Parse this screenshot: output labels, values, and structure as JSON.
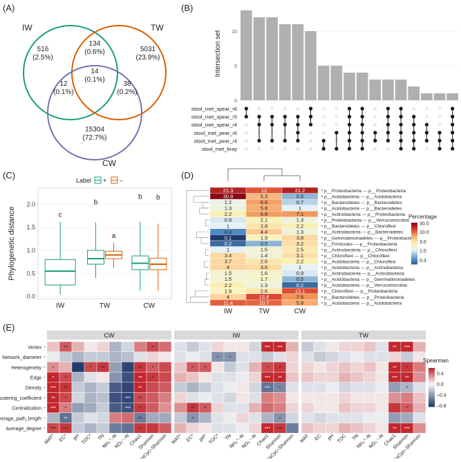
{
  "panels": {
    "A": "(A)",
    "B": "(B)",
    "C": "(C)",
    "D": "(D)",
    "E": "(E)"
  },
  "chart_data": [
    {
      "type": "venn",
      "panel": "A",
      "sets": [
        {
          "name": "IW",
          "color": "#1a9e77"
        },
        {
          "name": "TW",
          "color": "#d95f02"
        },
        {
          "name": "CW",
          "color": "#7570b3"
        }
      ],
      "regions": [
        {
          "id": "iw_only",
          "count": "516",
          "pct": "(2.5%)"
        },
        {
          "id": "iw_tw",
          "count": "134",
          "pct": "(0.6%)"
        },
        {
          "id": "tw_only",
          "count": "5031",
          "pct": "(23.9%)"
        },
        {
          "id": "iw_cw",
          "count": "12",
          "pct": "(0.1%)"
        },
        {
          "id": "all",
          "count": "14",
          "pct": "(0.1%)"
        },
        {
          "id": "tw_cw",
          "count": "38",
          "pct": "(0.2%)"
        },
        {
          "id": "cw_only",
          "count": "15304",
          "pct": "(72.7%)"
        }
      ]
    },
    {
      "type": "upset",
      "panel": "B",
      "ylabel": "Intersection set",
      "yticks": [
        0,
        5,
        10
      ],
      "ylim": [
        0,
        13.5
      ],
      "bar_values": [
        13,
        12,
        12,
        11,
        11,
        10,
        5,
        5,
        4,
        4,
        3,
        3,
        3,
        2,
        1,
        1,
        1
      ],
      "sets": [
        "stool_met_spear_r6",
        "stool_met_spear_r5",
        "stool_met_spear_r4",
        "stool_met_pear_r6",
        "stool_met_pear_r4",
        "stool_met_bray"
      ],
      "membership": [
        [
          0,
          1,
          1,
          1
        ],
        [
          1,
          2,
          2,
          4
        ],
        [
          1,
          2,
          2,
          4
        ],
        [
          1,
          2,
          4
        ],
        [
          1,
          2,
          3,
          4
        ],
        [
          0,
          1,
          2
        ],
        [
          4,
          5
        ],
        [
          3,
          5
        ],
        [
          0,
          1,
          2,
          3,
          4,
          5
        ],
        [
          0,
          1,
          2,
          3,
          4,
          5
        ],
        [
          3,
          4
        ],
        [
          0,
          1,
          2,
          3,
          4
        ],
        [
          0,
          1,
          2,
          3,
          4,
          5
        ],
        [
          1,
          2,
          3,
          4,
          5
        ],
        [
          2,
          3,
          4
        ],
        [
          3,
          4,
          5
        ],
        [
          0,
          1,
          2,
          3,
          4,
          5
        ]
      ]
    },
    {
      "type": "boxplot",
      "panel": "C",
      "ylabel": "Phylogenetic distance",
      "legend_title": "Label",
      "legend_items": [
        "+",
        "–"
      ],
      "categories": [
        "IW",
        "TW",
        "CW"
      ],
      "yticks": [
        0.0,
        0.5,
        1.0,
        1.5,
        2.0
      ],
      "ylim": [
        -0.05,
        2.35
      ],
      "series": [
        {
          "name": "+",
          "color": "#1a9e77",
          "boxes": [
            {
              "min": 0.05,
              "q1": 0.25,
              "median": 0.55,
              "q3": 0.8,
              "max": 1.62
            },
            {
              "min": 0.4,
              "q1": 0.7,
              "median": 0.82,
              "q3": 1.0,
              "max": 1.6
            },
            {
              "min": 0.12,
              "q1": 0.58,
              "median": 0.72,
              "q3": 0.88,
              "max": 1.62
            }
          ]
        },
        {
          "name": "–",
          "color": "#d95f02",
          "boxes": [
            null,
            {
              "min": 0.62,
              "q1": 0.82,
              "median": 0.9,
              "q3": 0.98,
              "max": 1.17
            },
            {
              "min": 0.12,
              "q1": 0.58,
              "median": 0.7,
              "q3": 0.83,
              "max": 1.58
            }
          ]
        }
      ],
      "letters": [
        {
          "cat": 0,
          "series": 0,
          "text": "c",
          "value": 1.73
        },
        {
          "cat": 1,
          "series": 0,
          "text": "b",
          "value": 2.0
        },
        {
          "cat": 1,
          "series": 1,
          "text": "a",
          "value": 1.27
        },
        {
          "cat": 2,
          "series": 0,
          "text": "b",
          "value": 2.12
        },
        {
          "cat": 2,
          "series": 1,
          "text": "b",
          "value": 2.1
        }
      ]
    },
    {
      "type": "heatmap",
      "panel": "D",
      "columns": [
        "IW",
        "TW",
        "CW"
      ],
      "rows": [
        {
          "label": "p__Proteobacteria --- p__Proteobacteria",
          "values": [
            "21.3",
            "12",
            "21.2"
          ]
        },
        {
          "label": "p__Acidobacteria --- p__Acidobacteria",
          "values": [
            "30.8",
            "5.3",
            "0.5"
          ]
        },
        {
          "label": "p__Bacteroidetes --- p__Bacteroidetes",
          "values": [
            "1.2",
            "6.6",
            "0.7"
          ]
        },
        {
          "label": "p__Acidobacteria --- p__Bacteroidetes",
          "values": [
            "1.3",
            "5.8",
            "1"
          ]
        },
        {
          "label": "p__Actinobacteria --- p__Proteobacteria",
          "values": [
            "2.2",
            "6.8",
            "7.1"
          ]
        },
        {
          "label": "p__Proteobacteria --- p__Verrucomicrobia",
          "values": [
            "0.9",
            "2.1",
            "1.3"
          ]
        },
        {
          "label": "p__Bacteroidetes --- p__Chloroflexi",
          "values": [
            "1",
            "2.8",
            "2.2"
          ]
        },
        {
          "label": "p__Actinobacteria --- p__Bacteroidetes",
          "values": [
            "0.3",
            "4.4",
            "1.3"
          ]
        },
        {
          "label": "p__Gemmatimonadetes --- p__Proteobacteria",
          "values": [
            "0.1",
            "1.9",
            "3.8"
          ]
        },
        {
          "label": "p__Firmicutes --- p__Proteobacteria",
          "values": [
            "0.2",
            "0.5",
            "3.2"
          ]
        },
        {
          "label": "p__Actinobacteria --- p__Chloroflexi",
          "values": [
            "1",
            "1.5",
            "2.5"
          ]
        },
        {
          "label": "p__Chloroflexi --- p__Chloroflexi",
          "values": [
            "3.4",
            "1.4",
            "3.1"
          ]
        },
        {
          "label": "p__Acidobacteria --- p__Chloroflexi",
          "values": [
            "3.7",
            "2.6",
            "2.2"
          ]
        },
        {
          "label": "p__Acidobacteria --- p__Actinobacteria",
          "values": [
            "4",
            "3.6",
            "1"
          ]
        },
        {
          "label": "p__Actinobacteria --- p__Actinobacteria",
          "values": [
            "1.5",
            "1.6",
            "0.9"
          ]
        },
        {
          "label": "p__Acidobacteria --- p__Gemmatimonadetes",
          "values": [
            "1.5",
            "1.7",
            "0.5"
          ]
        },
        {
          "label": "p__Acidobacteria --- p__Verrucomicrobia",
          "values": [
            "2.2",
            "1.3",
            "0.2"
          ]
        },
        {
          "label": "p__Chloroflexi --- p__Proteobacteria",
          "values": [
            "1.9",
            "2.6",
            "13.1"
          ]
        },
        {
          "label": "p__Bacteroidetes --- p__Proteobacteria",
          "values": [
            "4",
            "13.6",
            "7.5"
          ]
        },
        {
          "label": "p__Acidobacteria --- p__Acidobacteria",
          "values": [
            "11.4",
            "10.7",
            "5.9"
          ]
        }
      ],
      "legend_title": "Percentage",
      "legend_ticks": [
        "30.0",
        "10.0",
        "3.0",
        "1.0",
        "0.3"
      ]
    },
    {
      "type": "correlation_heatmap",
      "panel": "E",
      "facets": [
        "CW",
        "IW",
        "TW"
      ],
      "rows": [
        "Vertex",
        "Network_diameter",
        "Heterogeneity",
        "Edge",
        "Density",
        "Clustering_coefficient",
        "Centralization",
        "Average_path_length",
        "Average_degree"
      ],
      "columns": [
        "MAT",
        "EC",
        "pH",
        "TOC",
        "TN",
        "NH₄⁺–N",
        "NO₃⁻–N",
        "Chao1",
        "Shannon",
        "MetaCyc–Shannon"
      ],
      "col_labels_by_facet": {
        "CW": [
          "MAT*",
          "EC*",
          "pH",
          "TOC*",
          "TN",
          "NH₄⁺–N",
          "NO₃⁻–N",
          "Chao1",
          "Shannon",
          "MetaCyc–Shannon"
        ],
        "IW": [
          "MAT*",
          "EC*",
          "pH*",
          "TOC*",
          "TN",
          "NH₄⁺–N",
          "NO₃⁻–N",
          "Chao1",
          "Shannon",
          "MetaCyc–Shannon"
        ],
        "TW": [
          "MAT",
          "EC",
          "pH",
          "TOC",
          "TN",
          "NH₄⁺–N",
          "NO₃⁻–N",
          "Chao1",
          "Shannon",
          "MetaCyc–Shannon"
        ]
      },
      "values": {
        "CW": [
          [
            0.15,
            0.45,
            0.2,
            0.05,
            0.1,
            -0.3,
            -0.15,
            0.35,
            0.5,
            0.4
          ],
          [
            -0.05,
            -0.2,
            -0.3,
            -0.2,
            -0.2,
            -0.3,
            -0.25,
            -0.1,
            0.1,
            0.05
          ],
          [
            0.3,
            0.2,
            -0.85,
            0.5,
            0.55,
            -0.4,
            -0.8,
            0.55,
            0.45,
            0.5
          ],
          [
            0.6,
            0.5,
            -0.3,
            -0.1,
            0.05,
            -0.45,
            -0.75,
            0.65,
            0.55,
            0.5
          ],
          [
            0.65,
            0.55,
            -0.2,
            -0.3,
            -0.2,
            -0.7,
            -0.8,
            0.6,
            0.5,
            0.45
          ],
          [
            0.6,
            0.5,
            -0.15,
            -0.3,
            -0.25,
            -0.75,
            -0.8,
            0.5,
            0.45,
            0.35
          ],
          [
            0.6,
            0.35,
            -0.4,
            -0.35,
            -0.2,
            -0.7,
            -0.75,
            0.55,
            0.45,
            0.3
          ],
          [
            -0.3,
            -0.6,
            -0.2,
            -0.1,
            -0.15,
            0.35,
            0.4,
            -0.55,
            -0.35,
            -0.35
          ],
          [
            0.5,
            0.55,
            -0.2,
            -0.3,
            -0.2,
            -0.55,
            -0.6,
            0.55,
            0.55,
            0.45
          ]
        ],
        "IW": [
          [
            -0.1,
            -0.2,
            -0.1,
            0.1,
            0.05,
            0.05,
            -0.15,
            0.7,
            0.6,
            0.2
          ],
          [
            -0.1,
            -0.05,
            -0.1,
            -0.45,
            -0.45,
            -0.1,
            -0.1,
            -0.2,
            -0.1,
            0.1
          ],
          [
            0.15,
            0.45,
            0.45,
            0.05,
            -0.2,
            -0.1,
            0.2,
            0.5,
            0.55,
            0.1
          ],
          [
            0.2,
            0.15,
            0.05,
            -0.1,
            -0.1,
            -0.05,
            0.1,
            0.75,
            0.65,
            0.15
          ],
          [
            -0.2,
            -0.3,
            -0.2,
            -0.1,
            -0.05,
            0.05,
            -0.15,
            -0.6,
            -0.5,
            -0.1
          ],
          [
            0.1,
            -0.1,
            -0.05,
            -0.1,
            -0.15,
            0.05,
            -0.1,
            0.35,
            0.3,
            0.05
          ],
          [
            0.3,
            0.55,
            0.45,
            0.1,
            -0.1,
            -0.1,
            0.2,
            0.4,
            0.35,
            0.1
          ],
          [
            -0.2,
            -0.45,
            -0.3,
            -0.1,
            -0.05,
            0.1,
            -0.1,
            -0.3,
            -0.45,
            -0.15
          ],
          [
            0.2,
            0.1,
            0.05,
            -0.1,
            -0.1,
            -0.05,
            0.1,
            0.7,
            0.55,
            -0.55
          ]
        ],
        "TW": [
          [
            -0.2,
            -0.1,
            0.05,
            0.1,
            0.1,
            0.15,
            -0.1,
            0.75,
            0.7,
            0.2
          ],
          [
            -0.1,
            -0.2,
            -0.15,
            -0.1,
            -0.05,
            -0.1,
            -0.1,
            0.1,
            -0.2,
            0.05
          ],
          [
            0.1,
            0.05,
            0.1,
            0.15,
            0.1,
            0.15,
            0.05,
            0.6,
            0.55,
            0.35
          ],
          [
            0.15,
            0.1,
            0.1,
            0.2,
            0.15,
            0.1,
            0.05,
            0.7,
            0.65,
            0.3
          ],
          [
            -0.1,
            -0.1,
            -0.05,
            -0.15,
            -0.1,
            -0.1,
            -0.05,
            -0.4,
            -0.3,
            -0.1
          ],
          [
            0.05,
            0.05,
            0.05,
            0.1,
            0.05,
            0.05,
            0.05,
            0.3,
            0.35,
            0.15
          ],
          [
            0.1,
            0.05,
            0.05,
            0.15,
            0.1,
            0.1,
            0.05,
            0.55,
            0.45,
            0.2
          ],
          [
            -0.1,
            -0.15,
            -0.1,
            -0.1,
            -0.1,
            -0.05,
            -0.05,
            -0.4,
            -0.35,
            -0.1
          ],
          [
            0.15,
            0.1,
            0.1,
            0.2,
            0.15,
            0.1,
            0.05,
            0.7,
            0.65,
            0.3
          ]
        ]
      },
      "stars": {
        "CW": [
          [
            0,
            1,
            "**"
          ],
          [
            0,
            8,
            "*"
          ],
          [
            2,
            0,
            "*"
          ],
          [
            2,
            3,
            "*"
          ],
          [
            2,
            4,
            "**"
          ],
          [
            2,
            7,
            "**"
          ],
          [
            2,
            8,
            "*"
          ],
          [
            3,
            0,
            "*"
          ],
          [
            3,
            1,
            "*"
          ],
          [
            3,
            7,
            "**"
          ],
          [
            3,
            8,
            "*"
          ],
          [
            4,
            0,
            "***"
          ],
          [
            4,
            1,
            "**"
          ],
          [
            4,
            7,
            "**"
          ],
          [
            5,
            0,
            "**"
          ],
          [
            5,
            1,
            "*"
          ],
          [
            5,
            6,
            "***"
          ],
          [
            5,
            7,
            "**"
          ],
          [
            6,
            0,
            "***"
          ],
          [
            6,
            1,
            "*"
          ],
          [
            6,
            6,
            "***"
          ],
          [
            6,
            7,
            "*"
          ],
          [
            7,
            1,
            "**"
          ],
          [
            7,
            7,
            "**"
          ],
          [
            8,
            0,
            "***"
          ],
          [
            8,
            1,
            "***"
          ],
          [
            8,
            7,
            "**"
          ]
        ],
        "IW": [
          [
            0,
            7,
            "***"
          ],
          [
            0,
            8,
            "***"
          ],
          [
            1,
            3,
            "*"
          ],
          [
            1,
            4,
            "*"
          ],
          [
            2,
            1,
            "*"
          ],
          [
            2,
            2,
            "*"
          ],
          [
            2,
            7,
            "*"
          ],
          [
            2,
            8,
            "*"
          ],
          [
            3,
            7,
            "***"
          ],
          [
            3,
            8,
            "**"
          ],
          [
            4,
            7,
            "***"
          ],
          [
            4,
            8,
            "*"
          ],
          [
            6,
            1,
            "**"
          ],
          [
            6,
            2,
            "*"
          ],
          [
            7,
            1,
            "*"
          ],
          [
            7,
            8,
            "*"
          ],
          [
            8,
            7,
            "***"
          ],
          [
            8,
            8,
            "***"
          ]
        ],
        "TW": [
          [
            0,
            7,
            "**"
          ],
          [
            0,
            8,
            "***"
          ],
          [
            2,
            7,
            "**"
          ],
          [
            2,
            8,
            "*"
          ],
          [
            3,
            7,
            "***"
          ],
          [
            3,
            8,
            "**"
          ],
          [
            4,
            8,
            "*"
          ],
          [
            6,
            8,
            "*"
          ],
          [
            8,
            7,
            "**"
          ],
          [
            8,
            8,
            "***"
          ]
        ]
      },
      "legend_title": "Spearman",
      "legend_ticks": [
        "0.4",
        "0.0",
        "–0.4",
        "–0.8"
      ]
    }
  ]
}
